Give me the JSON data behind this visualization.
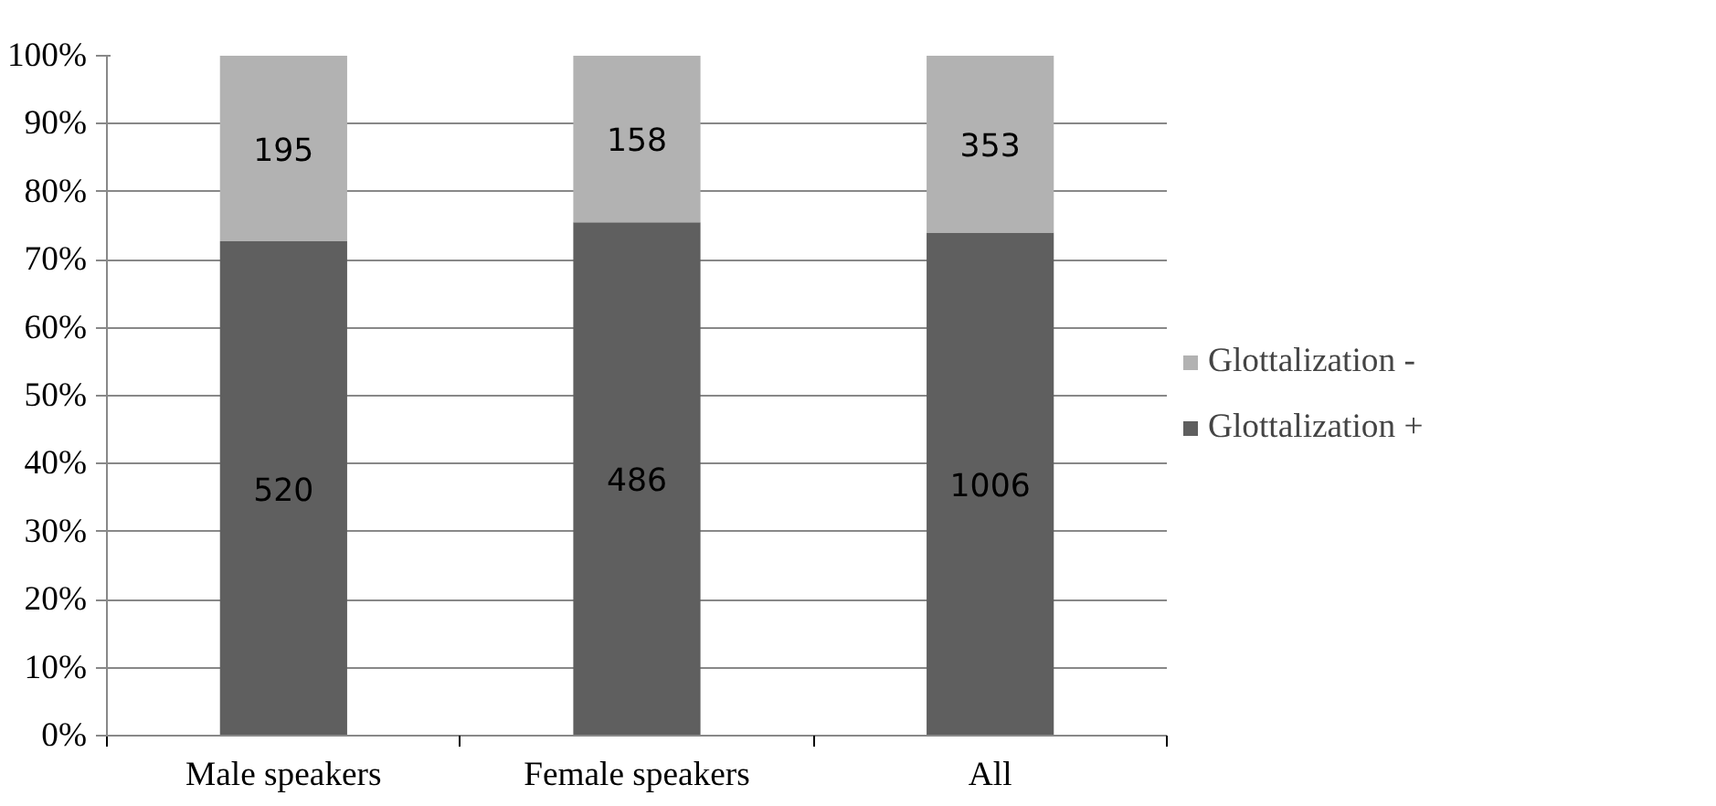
{
  "chart_data": {
    "type": "bar",
    "stacked": true,
    "categories": [
      "Male speakers",
      "Female speakers",
      "All"
    ],
    "series": [
      {
        "name": "Glottalization +",
        "color": "#5f5f5f",
        "values": [
          72.7,
          75.5,
          74.0
        ]
      },
      {
        "name": "Glottalization -",
        "color": "#b2b2b2",
        "values": [
          27.3,
          24.5,
          26.0
        ]
      }
    ],
    "annotations": [
      "520",
      "486",
      "1006",
      "195",
      "158",
      "353"
    ],
    "ylim": [
      0,
      100
    ],
    "yticks": [
      {
        "value": 0,
        "label": "0%"
      },
      {
        "value": 10,
        "label": "10%"
      },
      {
        "value": 20,
        "label": "20%"
      },
      {
        "value": 30,
        "label": "30%"
      },
      {
        "value": 40,
        "label": "40%"
      },
      {
        "value": 50,
        "label": "50%"
      },
      {
        "value": 60,
        "label": "60%"
      },
      {
        "value": 70,
        "label": "70%"
      },
      {
        "value": 80,
        "label": "80%"
      },
      {
        "value": 90,
        "label": "90%"
      },
      {
        "value": 100,
        "label": "100%"
      }
    ],
    "grid": "y",
    "legend": "right"
  }
}
